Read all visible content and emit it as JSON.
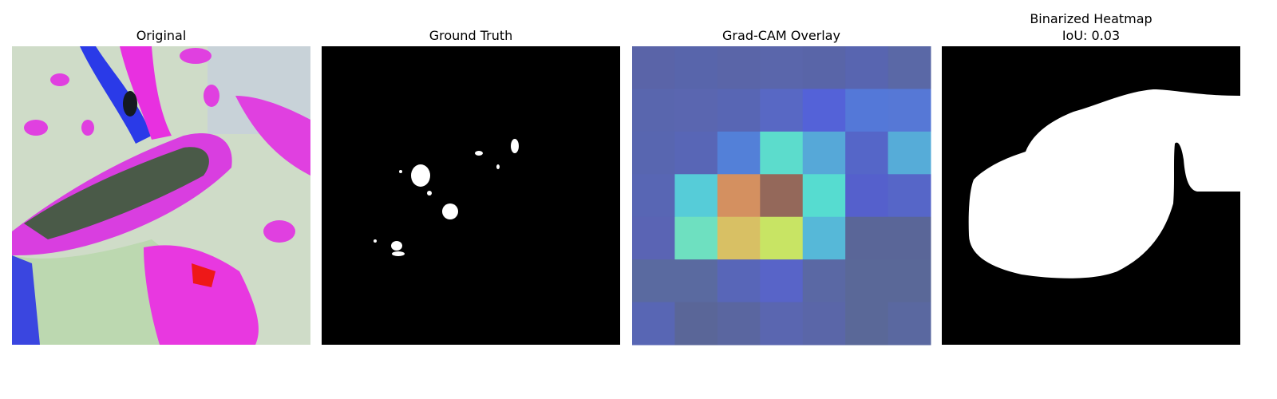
{
  "panels": [
    {
      "title": "Original"
    },
    {
      "title": "Ground Truth"
    },
    {
      "title": "Grad-CAM Overlay"
    },
    {
      "title": "Binarized Heatmap",
      "subtitle": "IoU: 0.03"
    }
  ]
}
